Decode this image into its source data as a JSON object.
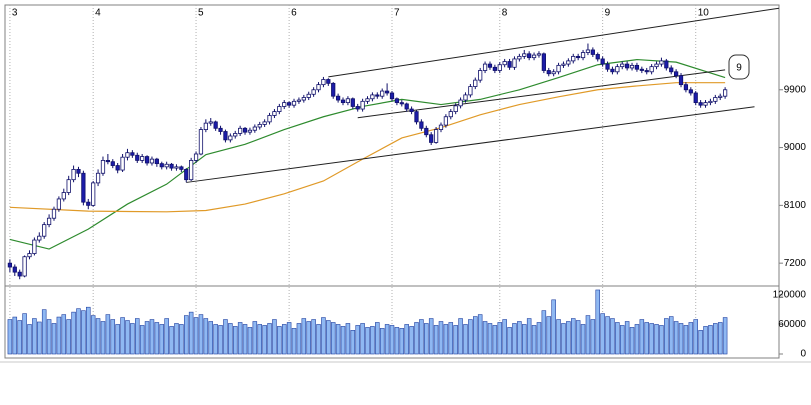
{
  "chart_data": {
    "type": "candlestick",
    "xlim": [
      -1,
      157
    ],
    "xticks": [
      {
        "value": 0,
        "label": "3"
      },
      {
        "value": 17,
        "label": "4"
      },
      {
        "value": 38,
        "label": "5"
      },
      {
        "value": 57,
        "label": "6"
      },
      {
        "value": 78,
        "label": "7"
      },
      {
        "value": 100,
        "label": "8"
      },
      {
        "value": 121,
        "label": "9"
      },
      {
        "value": 140,
        "label": "10"
      }
    ],
    "ylim": [
      6860,
      11220
    ],
    "yticks": [
      7200,
      8100,
      9000,
      9900
    ],
    "grid": true,
    "up_color": "#ffffff",
    "down_color": "#1c1ca8",
    "candles": [
      [
        7200,
        7260,
        7060,
        7140
      ],
      [
        7140,
        7180,
        7000,
        7060
      ],
      [
        7060,
        7100,
        6950,
        7000
      ],
      [
        7000,
        7320,
        6980,
        7300
      ],
      [
        7300,
        7400,
        7260,
        7350
      ],
      [
        7350,
        7600,
        7320,
        7560
      ],
      [
        7560,
        7680,
        7520,
        7620
      ],
      [
        7620,
        7840,
        7580,
        7800
      ],
      [
        7800,
        7960,
        7760,
        7900
      ],
      [
        7900,
        8080,
        7860,
        8040
      ],
      [
        8040,
        8240,
        8000,
        8200
      ],
      [
        8200,
        8360,
        8160,
        8300
      ],
      [
        8300,
        8560,
        8260,
        8500
      ],
      [
        8500,
        8720,
        8460,
        8660
      ],
      [
        8660,
        8700,
        8540,
        8600
      ],
      [
        8600,
        8640,
        8100,
        8150
      ],
      [
        8150,
        8200,
        8040,
        8100
      ],
      [
        8100,
        8480,
        8080,
        8450
      ],
      [
        8450,
        8660,
        8400,
        8600
      ],
      [
        8600,
        8860,
        8560,
        8800
      ],
      [
        8800,
        8900,
        8740,
        8780
      ],
      [
        8780,
        8820,
        8680,
        8720
      ],
      [
        8720,
        8760,
        8600,
        8650
      ],
      [
        8650,
        8900,
        8620,
        8850
      ],
      [
        8850,
        8980,
        8800,
        8920
      ],
      [
        8920,
        8960,
        8840,
        8880
      ],
      [
        8880,
        8920,
        8760,
        8800
      ],
      [
        8800,
        8900,
        8760,
        8860
      ],
      [
        8860,
        8880,
        8720,
        8760
      ],
      [
        8760,
        8860,
        8720,
        8820
      ],
      [
        8820,
        8840,
        8700,
        8750
      ],
      [
        8750,
        8780,
        8660,
        8700
      ],
      [
        8700,
        8780,
        8660,
        8740
      ],
      [
        8740,
        8760,
        8640,
        8680
      ],
      [
        8680,
        8740,
        8640,
        8700
      ],
      [
        8700,
        8720,
        8620,
        8660
      ],
      [
        8660,
        8680,
        8460,
        8500
      ],
      [
        8500,
        8840,
        8480,
        8800
      ],
      [
        8800,
        8940,
        8760,
        8900
      ],
      [
        8900,
        9320,
        8880,
        9280
      ],
      [
        9280,
        9440,
        9240,
        9380
      ],
      [
        9380,
        9460,
        9340,
        9400
      ],
      [
        9400,
        9420,
        9260,
        9300
      ],
      [
        9300,
        9340,
        9200,
        9250
      ],
      [
        9250,
        9280,
        9080,
        9120
      ],
      [
        9120,
        9220,
        9080,
        9180
      ],
      [
        9180,
        9260,
        9140,
        9220
      ],
      [
        9220,
        9340,
        9180,
        9300
      ],
      [
        9300,
        9320,
        9200,
        9240
      ],
      [
        9240,
        9310,
        9200,
        9270
      ],
      [
        9270,
        9360,
        9230,
        9320
      ],
      [
        9320,
        9400,
        9280,
        9360
      ],
      [
        9360,
        9440,
        9320,
        9400
      ],
      [
        9400,
        9540,
        9360,
        9500
      ],
      [
        9500,
        9600,
        9460,
        9560
      ],
      [
        9560,
        9680,
        9520,
        9640
      ],
      [
        9640,
        9740,
        9600,
        9700
      ],
      [
        9700,
        9720,
        9620,
        9660
      ],
      [
        9660,
        9760,
        9620,
        9720
      ],
      [
        9720,
        9780,
        9680,
        9740
      ],
      [
        9740,
        9820,
        9700,
        9780
      ],
      [
        9780,
        9870,
        9740,
        9830
      ],
      [
        9830,
        9940,
        9790,
        9900
      ],
      [
        9900,
        10020,
        9860,
        9980
      ],
      [
        9980,
        10100,
        9940,
        10060
      ],
      [
        10060,
        10080,
        9960,
        10000
      ],
      [
        10000,
        10020,
        9760,
        9800
      ],
      [
        9800,
        9840,
        9700,
        9740
      ],
      [
        9740,
        9780,
        9660,
        9700
      ],
      [
        9700,
        9800,
        9660,
        9760
      ],
      [
        9760,
        9780,
        9600,
        9640
      ],
      [
        9640,
        9680,
        9560,
        9600
      ],
      [
        9600,
        9760,
        9560,
        9720
      ],
      [
        9720,
        9800,
        9680,
        9760
      ],
      [
        9760,
        9860,
        9720,
        9820
      ],
      [
        9820,
        9860,
        9760,
        9800
      ],
      [
        9800,
        9920,
        9760,
        9880
      ],
      [
        9880,
        10000,
        9810,
        9850
      ],
      [
        9850,
        9880,
        9720,
        9760
      ],
      [
        9760,
        9780,
        9660,
        9700
      ],
      [
        9700,
        9740,
        9640,
        9680
      ],
      [
        9680,
        9700,
        9560,
        9600
      ],
      [
        9600,
        9640,
        9520,
        9560
      ],
      [
        9560,
        9580,
        9360,
        9400
      ],
      [
        9400,
        9440,
        9260,
        9300
      ],
      [
        9300,
        9340,
        9160,
        9200
      ],
      [
        9200,
        9240,
        9040,
        9080
      ],
      [
        9080,
        9320,
        9060,
        9280
      ],
      [
        9280,
        9390,
        9240,
        9350
      ],
      [
        9350,
        9520,
        9310,
        9480
      ],
      [
        9480,
        9600,
        9440,
        9560
      ],
      [
        9560,
        9690,
        9520,
        9650
      ],
      [
        9650,
        9780,
        9610,
        9740
      ],
      [
        9740,
        9860,
        9700,
        9820
      ],
      [
        9820,
        9990,
        9780,
        9950
      ],
      [
        9950,
        10090,
        9910,
        10050
      ],
      [
        10050,
        10240,
        10010,
        10200
      ],
      [
        10200,
        10340,
        10160,
        10300
      ],
      [
        10300,
        10340,
        10210,
        10250
      ],
      [
        10250,
        10290,
        10160,
        10200
      ],
      [
        10200,
        10330,
        10160,
        10290
      ],
      [
        10290,
        10380,
        10250,
        10340
      ],
      [
        10340,
        10380,
        10210,
        10250
      ],
      [
        10250,
        10420,
        10210,
        10380
      ],
      [
        10380,
        10460,
        10340,
        10420
      ],
      [
        10420,
        10520,
        10380,
        10460
      ],
      [
        10460,
        10500,
        10360,
        10400
      ],
      [
        10400,
        10480,
        10360,
        10440
      ],
      [
        10440,
        10500,
        10400,
        10460
      ],
      [
        10460,
        10480,
        10160,
        10200
      ],
      [
        10200,
        10240,
        10110,
        10150
      ],
      [
        10150,
        10220,
        10110,
        10180
      ],
      [
        10180,
        10320,
        10140,
        10280
      ],
      [
        10280,
        10340,
        10240,
        10300
      ],
      [
        10300,
        10390,
        10260,
        10350
      ],
      [
        10350,
        10460,
        10310,
        10420
      ],
      [
        10420,
        10460,
        10360,
        10400
      ],
      [
        10400,
        10520,
        10360,
        10480
      ],
      [
        10480,
        10620,
        10440,
        10520
      ],
      [
        10520,
        10560,
        10410,
        10450
      ],
      [
        10450,
        10480,
        10340,
        10380
      ],
      [
        10380,
        10420,
        10260,
        10300
      ],
      [
        10300,
        10340,
        10180,
        10220
      ],
      [
        10220,
        10260,
        10140,
        10180
      ],
      [
        10180,
        10300,
        10140,
        10260
      ],
      [
        10260,
        10340,
        10220,
        10300
      ],
      [
        10300,
        10340,
        10200,
        10240
      ],
      [
        10240,
        10320,
        10200,
        10280
      ],
      [
        10280,
        10320,
        10180,
        10220
      ],
      [
        10220,
        10260,
        10160,
        10200
      ],
      [
        10200,
        10240,
        10140,
        10180
      ],
      [
        10180,
        10300,
        10140,
        10260
      ],
      [
        10260,
        10340,
        10220,
        10300
      ],
      [
        10300,
        10400,
        10260,
        10350
      ],
      [
        10350,
        10380,
        10200,
        10240
      ],
      [
        10240,
        10280,
        10140,
        10180
      ],
      [
        10180,
        10220,
        10080,
        10120
      ],
      [
        10120,
        10160,
        9940,
        9980
      ],
      [
        9980,
        10020,
        9860,
        9900
      ],
      [
        9900,
        9940,
        9810,
        9850
      ],
      [
        9850,
        9880,
        9660,
        9700
      ],
      [
        9700,
        9740,
        9620,
        9660
      ],
      [
        9660,
        9740,
        9620,
        9700
      ],
      [
        9700,
        9760,
        9660,
        9720
      ],
      [
        9720,
        9820,
        9680,
        9780
      ],
      [
        9780,
        9840,
        9740,
        9800
      ],
      [
        9800,
        9940,
        9760,
        9900
      ]
    ],
    "series": [
      {
        "color": "#2e8b2e",
        "x": [
          0,
          8,
          16,
          24,
          32,
          40,
          48,
          56,
          64,
          72,
          80,
          88,
          96,
          104,
          112,
          120,
          128,
          136,
          146
        ],
        "values": [
          7570,
          7420,
          7730,
          8120,
          8430,
          8890,
          9050,
          9280,
          9480,
          9640,
          9750,
          9670,
          9750,
          9900,
          10090,
          10290,
          10370,
          10330,
          10090
        ]
      },
      {
        "color": "#e09a28",
        "x": [
          0,
          16,
          32,
          40,
          48,
          56,
          64,
          72,
          80,
          88,
          96,
          104,
          112,
          120,
          128,
          136,
          146
        ],
        "values": [
          8070,
          8010,
          8000,
          8020,
          8120,
          8280,
          8480,
          8820,
          9150,
          9310,
          9510,
          9670,
          9790,
          9900,
          9960,
          10010,
          10010
        ]
      }
    ],
    "trendlines": [
      {
        "x": [
          36,
          152
        ],
        "values": [
          8457,
          9636
        ]
      },
      {
        "x": [
          71,
          146
        ],
        "values": [
          9465,
          10210
        ]
      },
      {
        "x": [
          65,
          157
        ],
        "values": [
          10100,
          11170
        ]
      }
    ],
    "annotation": "9",
    "volume": {
      "color": "#8fb8f2",
      "ylim": [
        0,
        134000
      ],
      "yticks": [
        0,
        60000,
        120000
      ],
      "values": [
        70000,
        75000,
        68000,
        82000,
        60000,
        72000,
        65000,
        90000,
        70000,
        62000,
        75000,
        80000,
        70000,
        85000,
        92000,
        88000,
        95000,
        78000,
        72000,
        66000,
        80000,
        70000,
        60000,
        74000,
        68000,
        62000,
        72000,
        58000,
        66000,
        70000,
        64000,
        60000,
        72000,
        56000,
        62000,
        60000,
        78000,
        85000,
        74000,
        80000,
        72000,
        66000,
        60000,
        58000,
        70000,
        62000,
        56000,
        64000,
        60000,
        54000,
        66000,
        60000,
        58000,
        62000,
        70000,
        56000,
        60000,
        64000,
        52000,
        62000,
        72000,
        66000,
        70000,
        60000,
        74000,
        68000,
        64000,
        60000,
        56000,
        62000,
        48000,
        58000,
        62000,
        54000,
        56000,
        64000,
        52000,
        60000,
        58000,
        54000,
        52000,
        60000,
        56000,
        64000,
        70000,
        62000,
        72000,
        58000,
        66000,
        60000,
        64000,
        58000,
        72000,
        60000,
        70000,
        76000,
        80000,
        66000,
        62000,
        58000,
        64000,
        70000,
        54000,
        62000,
        66000,
        60000,
        72000,
        58000,
        64000,
        88000,
        76000,
        110000,
        70000,
        62000,
        66000,
        72000,
        68000,
        60000,
        78000,
        70000,
        130000,
        82000,
        76000,
        72000,
        64000,
        58000,
        66000,
        54000,
        60000,
        70000,
        64000,
        62000,
        60000,
        58000,
        72000,
        76000,
        66000,
        62000,
        58000,
        64000,
        70000,
        48000,
        56000,
        58000,
        62000,
        64000,
        74000
      ]
    }
  }
}
